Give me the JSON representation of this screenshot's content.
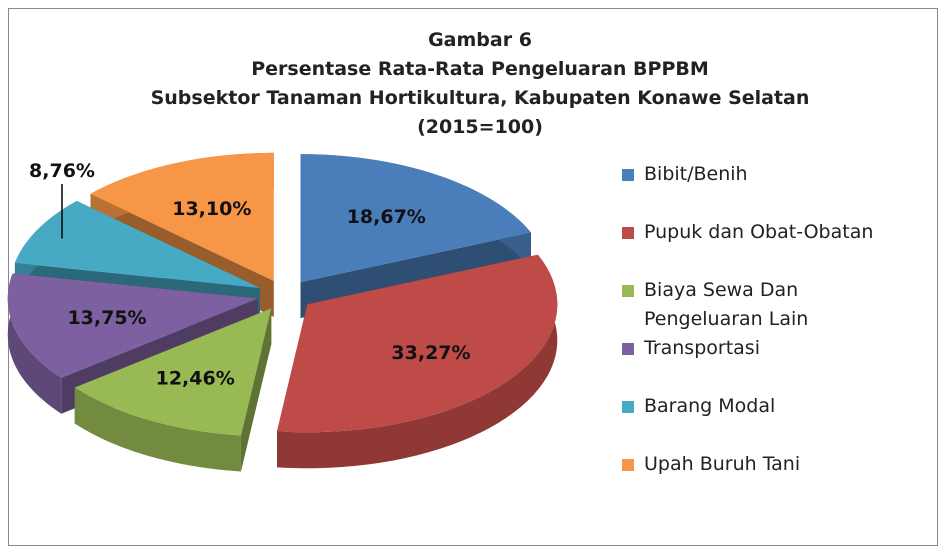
{
  "chart_data": {
    "type": "pie",
    "title": [
      "Gambar 6",
      "Persentase Rata-Rata Pengeluaran BPPBM",
      "Subsektor Tanaman Hortikultura, Kabupaten Konawe Selatan",
      "(2015=100)"
    ],
    "categories": [
      "Bibit/Benih",
      "Pupuk dan Obat-Obatan",
      "Biaya Sewa Dan Pengeluaran Lain",
      "Transportasi",
      "Barang Modal",
      "Upah Buruh Tani"
    ],
    "values": [
      18.67,
      33.27,
      12.46,
      13.75,
      8.76,
      13.1
    ],
    "value_labels": [
      "18,67%",
      "33,27%",
      "12,46%",
      "13,75%",
      "8,76%",
      "13,10%"
    ],
    "colors": [
      "#4a7ebb",
      "#be4b48",
      "#98b954",
      "#7d60a0",
      "#46aac5",
      "#f79646"
    ],
    "legend": "right"
  }
}
